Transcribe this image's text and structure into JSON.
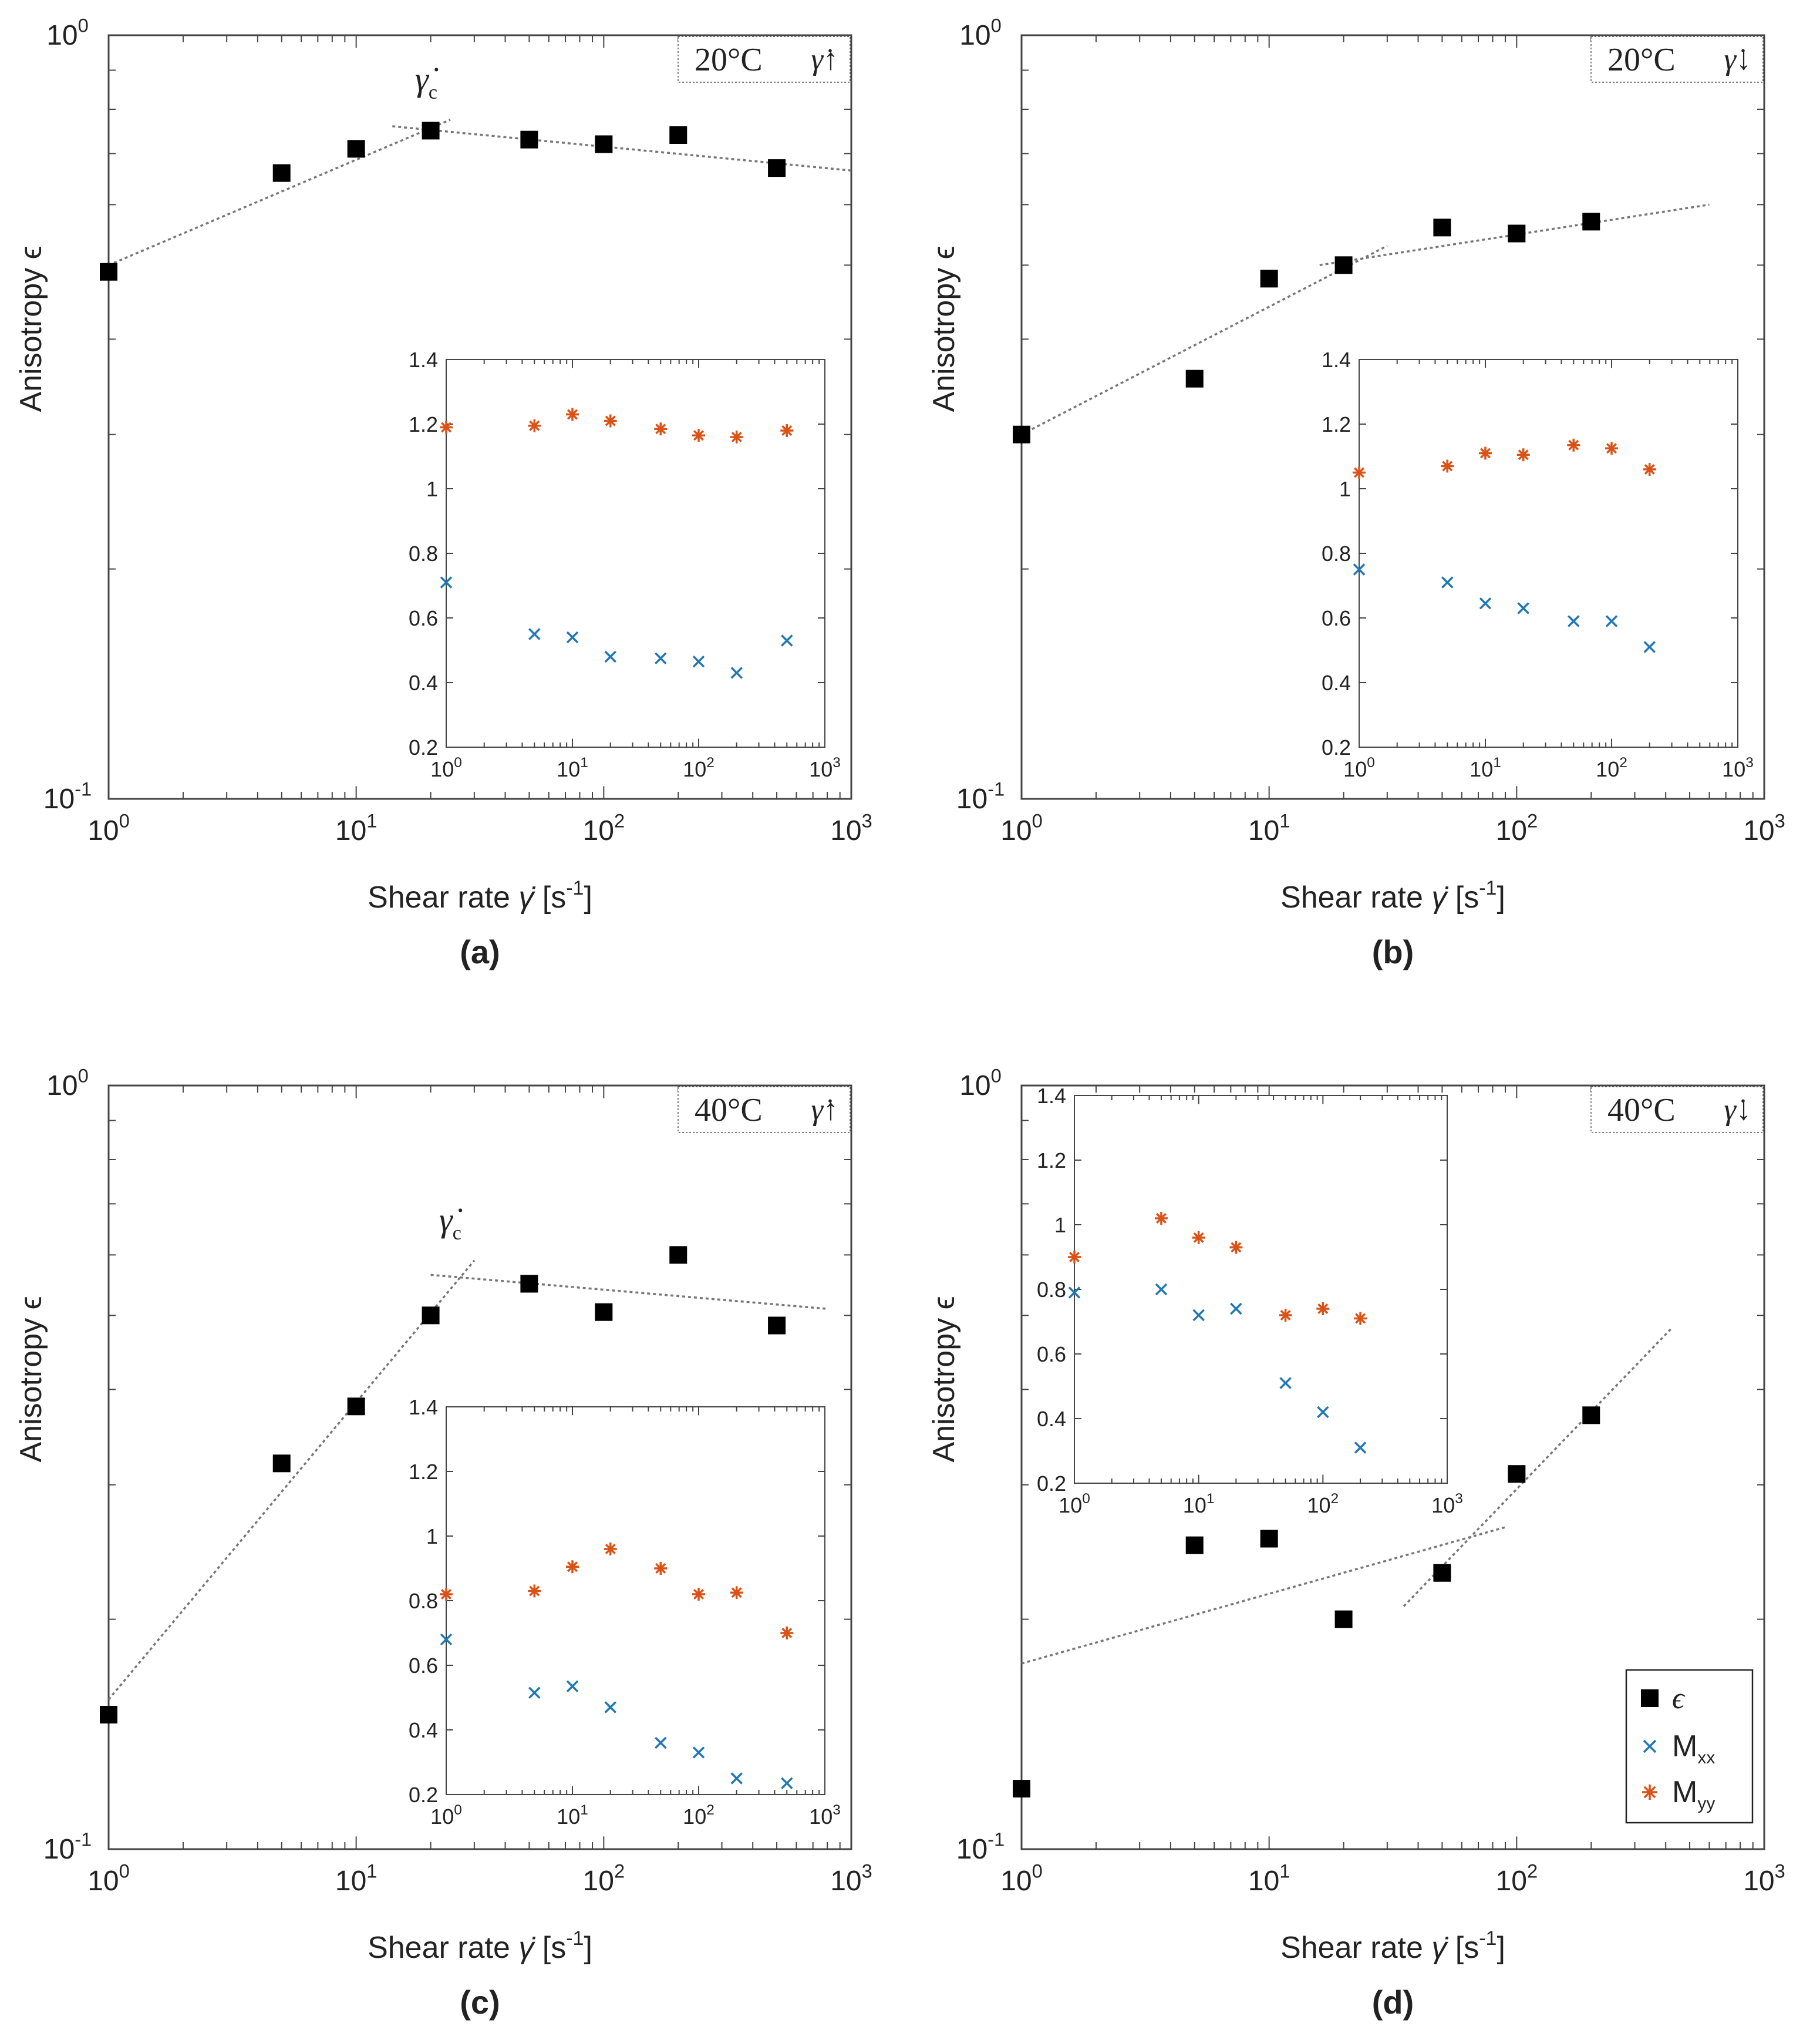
{
  "colors": {
    "epsilon": "#000000",
    "mxx": "#1f77b4",
    "myy": "#d95319",
    "fit": "#777777",
    "axis": "#444444"
  },
  "legend": {
    "epsilon": "ϵ",
    "mxx": "M",
    "mxx_sub": "xx",
    "myy": "M",
    "myy_sub": "yy",
    "placement": "inset bottom-right of (d)"
  },
  "common": {
    "ylabel": "Anisotropy ϵ",
    "xlabel_pre": "Shear rate ",
    "xlabel_sym": "γ̇",
    "xlabel_post": " [s",
    "xlabel_exp": "-1",
    "xlabel_end": "]",
    "gamma_c_symbol": "γ̇",
    "gamma_c_sub": "c"
  },
  "chart_data": [
    {
      "id": "a",
      "caption": "(a)",
      "type": "scatter",
      "box_temp": "20°C",
      "box_dir": "γ̇↑",
      "xscale": "log",
      "yscale": "log",
      "xlim": [
        1,
        1000
      ],
      "ylim": [
        0.1,
        1
      ],
      "xticks": [
        {
          "base": "10",
          "exp": "0"
        },
        {
          "base": "10",
          "exp": "1"
        },
        {
          "base": "10",
          "exp": "2"
        },
        {
          "base": "10",
          "exp": "3"
        }
      ],
      "yticks": [
        {
          "base": "10",
          "exp": "-1"
        },
        {
          "base": "10",
          "exp": "0"
        }
      ],
      "epsilon": {
        "x": [
          1,
          5,
          10,
          20,
          50,
          100,
          200,
          500
        ],
        "y": [
          0.49,
          0.66,
          0.71,
          0.75,
          0.73,
          0.72,
          0.74,
          0.67
        ]
      },
      "fits": [
        {
          "x": [
            1,
            24
          ],
          "y": [
            0.5,
            0.775
          ]
        },
        {
          "x": [
            14,
            1000
          ],
          "y": [
            0.76,
            0.665
          ]
        }
      ],
      "gamma_c_label": true,
      "inset": {
        "placement": "bottom-right",
        "xlim": [
          1,
          1000
        ],
        "ylim": [
          0.2,
          1.4
        ],
        "xticks": [
          {
            "base": "10",
            "exp": "0"
          },
          {
            "base": "10",
            "exp": "1"
          },
          {
            "base": "10",
            "exp": "2"
          },
          {
            "base": "10",
            "exp": "3"
          }
        ],
        "yticks": [
          "0.2",
          "0.4",
          "0.6",
          "0.8",
          "1",
          "1.2",
          "1.4"
        ],
        "mxx": {
          "x": [
            1,
            5,
            10,
            20,
            50,
            100,
            200,
            500
          ],
          "y": [
            0.71,
            0.55,
            0.54,
            0.48,
            0.475,
            0.465,
            0.43,
            0.53
          ]
        },
        "myy": {
          "x": [
            1,
            5,
            10,
            20,
            50,
            100,
            200,
            500
          ],
          "y": [
            1.19,
            1.195,
            1.23,
            1.21,
            1.185,
            1.165,
            1.16,
            1.18
          ]
        }
      }
    },
    {
      "id": "b",
      "caption": "(b)",
      "type": "scatter",
      "box_temp": "20°C",
      "box_dir": "γ̇↓",
      "xscale": "log",
      "yscale": "log",
      "xlim": [
        1,
        1000
      ],
      "ylim": [
        0.1,
        1
      ],
      "xticks": [
        {
          "base": "10",
          "exp": "0"
        },
        {
          "base": "10",
          "exp": "1"
        },
        {
          "base": "10",
          "exp": "2"
        },
        {
          "base": "10",
          "exp": "3"
        }
      ],
      "yticks": [
        {
          "base": "10",
          "exp": "-1"
        },
        {
          "base": "10",
          "exp": "0"
        }
      ],
      "epsilon": {
        "x": [
          1,
          5,
          10,
          20,
          50,
          100,
          200
        ],
        "y": [
          0.3,
          0.355,
          0.48,
          0.5,
          0.56,
          0.55,
          0.57
        ]
      },
      "fits": [
        {
          "x": [
            1,
            30
          ],
          "y": [
            0.3,
            0.53
          ]
        },
        {
          "x": [
            16,
            600
          ],
          "y": [
            0.5,
            0.6
          ]
        }
      ],
      "gamma_c_label": false,
      "inset": {
        "placement": "bottom-right",
        "xlim": [
          1,
          1000
        ],
        "ylim": [
          0.2,
          1.4
        ],
        "xticks": [
          {
            "base": "10",
            "exp": "0"
          },
          {
            "base": "10",
            "exp": "1"
          },
          {
            "base": "10",
            "exp": "2"
          },
          {
            "base": "10",
            "exp": "3"
          }
        ],
        "yticks": [
          "0.2",
          "0.4",
          "0.6",
          "0.8",
          "1",
          "1.2",
          "1.4"
        ],
        "mxx": {
          "x": [
            1,
            5,
            10,
            20,
            50,
            100,
            200
          ],
          "y": [
            0.75,
            0.71,
            0.645,
            0.63,
            0.59,
            0.59,
            0.51
          ]
        },
        "myy": {
          "x": [
            1,
            5,
            10,
            20,
            50,
            100,
            200
          ],
          "y": [
            1.05,
            1.07,
            1.11,
            1.105,
            1.135,
            1.125,
            1.06
          ]
        }
      }
    },
    {
      "id": "c",
      "caption": "(c)",
      "type": "scatter",
      "box_temp": "40°C",
      "box_dir": "γ̇↑",
      "xscale": "log",
      "yscale": "log",
      "xlim": [
        1,
        1000
      ],
      "ylim": [
        0.1,
        1
      ],
      "xticks": [
        {
          "base": "10",
          "exp": "0"
        },
        {
          "base": "10",
          "exp": "1"
        },
        {
          "base": "10",
          "exp": "2"
        },
        {
          "base": "10",
          "exp": "3"
        }
      ],
      "yticks": [
        {
          "base": "10",
          "exp": "-1"
        },
        {
          "base": "10",
          "exp": "0"
        }
      ],
      "epsilon": {
        "x": [
          1,
          5,
          10,
          20,
          50,
          100,
          200,
          500
        ],
        "y": [
          0.15,
          0.32,
          0.38,
          0.5,
          0.55,
          0.505,
          0.6,
          0.485
        ]
      },
      "fits": [
        {
          "x": [
            1,
            30
          ],
          "y": [
            0.157,
            0.59
          ]
        },
        {
          "x": [
            20,
            800
          ],
          "y": [
            0.565,
            0.51
          ]
        }
      ],
      "gamma_c_label": true,
      "inset": {
        "placement": "bottom-right",
        "xlim": [
          1,
          1000
        ],
        "ylim": [
          0.2,
          1.4
        ],
        "xticks": [
          {
            "base": "10",
            "exp": "0"
          },
          {
            "base": "10",
            "exp": "1"
          },
          {
            "base": "10",
            "exp": "2"
          },
          {
            "base": "10",
            "exp": "3"
          }
        ],
        "yticks": [
          "0.2",
          "0.4",
          "0.6",
          "0.8",
          "1",
          "1.2",
          "1.4"
        ],
        "mxx": {
          "x": [
            1,
            5,
            10,
            20,
            50,
            100,
            200,
            500
          ],
          "y": [
            0.68,
            0.515,
            0.535,
            0.47,
            0.36,
            0.33,
            0.25,
            0.235
          ]
        },
        "myy": {
          "x": [
            1,
            5,
            10,
            20,
            50,
            100,
            200,
            500
          ],
          "y": [
            0.82,
            0.83,
            0.905,
            0.96,
            0.9,
            0.82,
            0.825,
            0.7
          ]
        }
      }
    },
    {
      "id": "d",
      "caption": "(d)",
      "type": "scatter",
      "box_temp": "40°C",
      "box_dir": "γ̇↓",
      "xscale": "log",
      "yscale": "log",
      "xlim": [
        1,
        1000
      ],
      "ylim": [
        0.1,
        1
      ],
      "xticks": [
        {
          "base": "10",
          "exp": "0"
        },
        {
          "base": "10",
          "exp": "1"
        },
        {
          "base": "10",
          "exp": "2"
        },
        {
          "base": "10",
          "exp": "3"
        }
      ],
      "yticks": [
        {
          "base": "10",
          "exp": "-1"
        },
        {
          "base": "10",
          "exp": "0"
        }
      ],
      "epsilon": {
        "x": [
          1,
          5,
          10,
          20,
          50,
          100,
          200
        ],
        "y": [
          0.12,
          0.25,
          0.255,
          0.2,
          0.23,
          0.31,
          0.37
        ]
      },
      "fits": [
        {
          "x": [
            1,
            90
          ],
          "y": [
            0.175,
            0.264
          ]
        },
        {
          "x": [
            35,
            420
          ],
          "y": [
            0.208,
            0.48
          ]
        }
      ],
      "gamma_c_label": false,
      "inset": {
        "placement": "top-left",
        "xlim": [
          1,
          1000
        ],
        "ylim": [
          0.2,
          1.4
        ],
        "xticks": [
          {
            "base": "10",
            "exp": "0"
          },
          {
            "base": "10",
            "exp": "1"
          },
          {
            "base": "10",
            "exp": "2"
          },
          {
            "base": "10",
            "exp": "3"
          }
        ],
        "yticks": [
          "0.2",
          "0.4",
          "0.6",
          "0.8",
          "1",
          "1.2",
          "1.4"
        ],
        "mxx": {
          "x": [
            1,
            5,
            10,
            20,
            50,
            100,
            200
          ],
          "y": [
            0.79,
            0.8,
            0.72,
            0.74,
            0.51,
            0.42,
            0.31
          ]
        },
        "myy": {
          "x": [
            1,
            5,
            10,
            20,
            50,
            100,
            200
          ],
          "y": [
            0.9,
            1.02,
            0.96,
            0.93,
            0.72,
            0.74,
            0.71
          ]
        }
      }
    }
  ]
}
